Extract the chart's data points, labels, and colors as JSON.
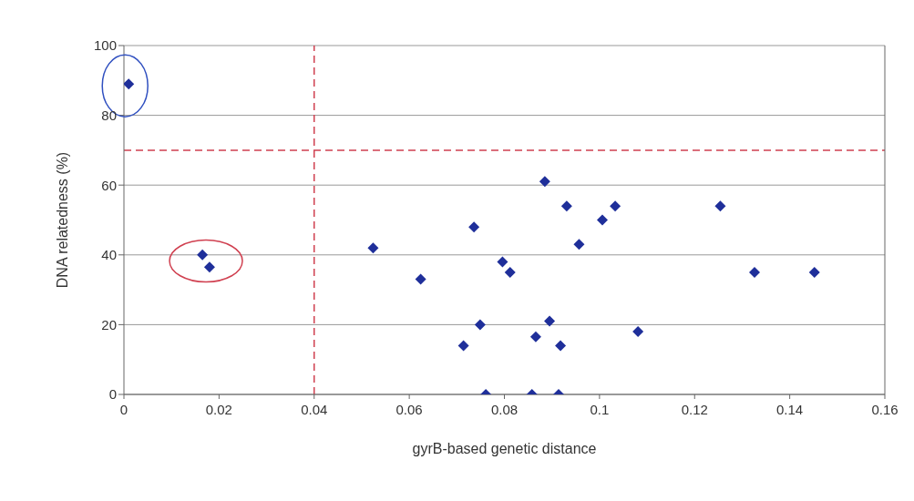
{
  "chart_data": {
    "type": "scatter",
    "xlabel": "gyrB-based genetic distance",
    "ylabel": "DNA relatedness (%)",
    "x": [
      0.001,
      0.0165,
      0.018,
      0.0524,
      0.0624,
      0.0714,
      0.0736,
      0.0749,
      0.0761,
      0.0796,
      0.0812,
      0.0858,
      0.0866,
      0.0885,
      0.0895,
      0.0914,
      0.0918,
      0.0931,
      0.0957,
      0.1006,
      0.1033,
      0.1081,
      0.1254,
      0.1326,
      0.1452
    ],
    "values": [
      89,
      40,
      36.5,
      42,
      33,
      14,
      48,
      20,
      0,
      38,
      35,
      0,
      16.5,
      61,
      21,
      0,
      14,
      54,
      43,
      50,
      54,
      18,
      54,
      35,
      35
    ],
    "color": "#1f2f9a",
    "marker": "diamond",
    "xlim": [
      0,
      0.16
    ],
    "xticks": [
      0,
      0.02,
      0.04,
      0.06,
      0.08,
      0.1,
      0.12,
      0.14,
      0.16
    ],
    "ylim": [
      0,
      100
    ],
    "yticks": [
      0,
      20,
      40,
      60,
      80,
      100
    ],
    "grid": "y",
    "ref_lines": [
      {
        "axis": "x",
        "value": 0.04,
        "color": "#d04050",
        "line_style": "dashed"
      },
      {
        "axis": "y",
        "value": 70,
        "color": "#d04050",
        "line_style": "dashed"
      }
    ]
  }
}
